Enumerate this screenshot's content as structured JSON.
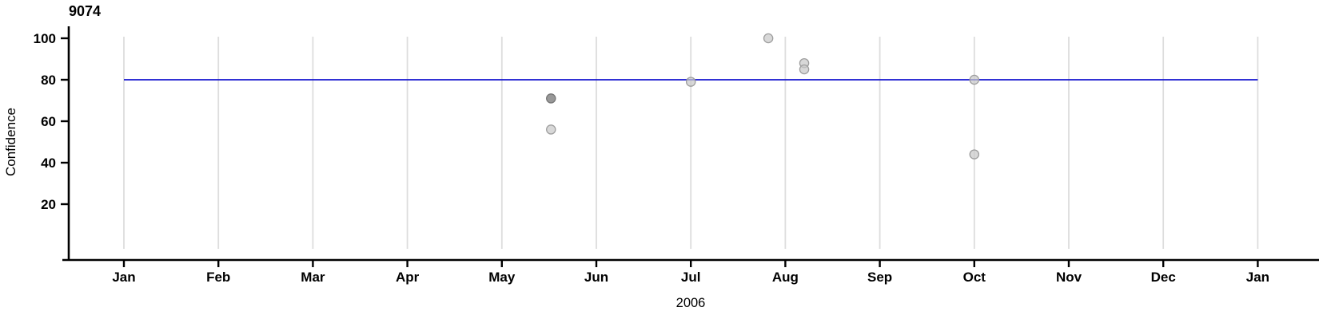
{
  "chart_data": {
    "type": "scatter",
    "title": "9074",
    "ylabel": "Confidence",
    "xlabel": "2006",
    "x_axis": {
      "tick_labels": [
        "Jan",
        "Feb",
        "Mar",
        "Apr",
        "May",
        "Jun",
        "Jul",
        "Aug",
        "Sep",
        "Oct",
        "Nov",
        "Dec",
        "Jan"
      ],
      "range_months": [
        0,
        12
      ],
      "grid": true
    },
    "y_axis": {
      "tick_labels": [
        "20",
        "40",
        "60",
        "80",
        "100"
      ],
      "ticks": [
        20,
        40,
        60,
        80,
        100
      ],
      "range": [
        0,
        106
      ],
      "grid": false
    },
    "reference_line": {
      "y": 80
    },
    "points": [
      {
        "x_month": 4.52,
        "confidence": 71,
        "shade": "dark"
      },
      {
        "x_month": 4.52,
        "confidence": 56,
        "shade": "light"
      },
      {
        "x_month": 6.0,
        "confidence": 79,
        "shade": "light"
      },
      {
        "x_month": 6.82,
        "confidence": 100,
        "shade": "light"
      },
      {
        "x_month": 7.2,
        "confidence": 88,
        "shade": "light"
      },
      {
        "x_month": 7.2,
        "confidence": 85,
        "shade": "light"
      },
      {
        "x_month": 9.0,
        "confidence": 80,
        "shade": "light"
      },
      {
        "x_month": 9.0,
        "confidence": 44,
        "shade": "light"
      }
    ],
    "colors": {
      "reference_line": "#1515cf",
      "grid_line": "#dddddd",
      "axis_line": "#000000",
      "point_fill_light": "#c9c9c9",
      "point_fill_dark": "#8f8f8f",
      "point_stroke_light": "#9e9e9e",
      "point_stroke_dark": "#767676",
      "text": "#000000"
    }
  }
}
